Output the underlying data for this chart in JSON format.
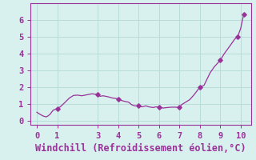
{
  "x": [
    0,
    0.15,
    0.3,
    0.45,
    0.55,
    0.65,
    0.8,
    1.0,
    1.15,
    1.35,
    1.6,
    1.8,
    2.0,
    2.2,
    2.5,
    2.7,
    3.0,
    3.1,
    3.25,
    3.5,
    3.7,
    4.0,
    4.15,
    4.3,
    4.5,
    4.65,
    4.8,
    5.0,
    5.15,
    5.35,
    5.5,
    5.7,
    5.85,
    6.0,
    6.2,
    6.4,
    6.6,
    6.8,
    7.0,
    7.1,
    7.3,
    7.5,
    7.7,
    8.0,
    8.2,
    8.5,
    8.7,
    9.0,
    9.2,
    9.5,
    9.7,
    9.85,
    10.0,
    10.15
  ],
  "y": [
    0.5,
    0.38,
    0.28,
    0.22,
    0.28,
    0.38,
    0.62,
    0.72,
    0.82,
    1.05,
    1.35,
    1.5,
    1.52,
    1.48,
    1.55,
    1.6,
    1.55,
    1.45,
    1.48,
    1.42,
    1.35,
    1.3,
    1.2,
    1.15,
    1.1,
    0.95,
    0.88,
    0.88,
    0.82,
    0.88,
    0.82,
    0.78,
    0.82,
    0.8,
    0.75,
    0.78,
    0.8,
    0.8,
    0.78,
    0.95,
    1.1,
    1.25,
    1.52,
    2.0,
    2.1,
    2.85,
    3.2,
    3.6,
    4.0,
    4.5,
    4.85,
    5.0,
    5.5,
    6.35
  ],
  "marker_x": [
    1.0,
    3.0,
    4.0,
    5.0,
    6.0,
    7.0,
    8.0,
    9.0,
    9.85,
    10.15
  ],
  "marker_y": [
    0.72,
    1.55,
    1.3,
    0.88,
    0.8,
    0.78,
    2.0,
    3.6,
    5.0,
    6.35
  ],
  "xlabel": "Windchill (Refroidissement éolien,°C)",
  "xlim": [
    -0.3,
    10.5
  ],
  "ylim": [
    -0.25,
    7.0
  ],
  "xticks": [
    0,
    1,
    3,
    4,
    5,
    6,
    7,
    8,
    9,
    10
  ],
  "yticks": [
    0,
    1,
    2,
    3,
    4,
    5,
    6
  ],
  "line_color": "#993399",
  "marker_color": "#993399",
  "bg_color": "#d8f0ee",
  "grid_color": "#b8dcd8",
  "spine_color": "#993399",
  "tick_color": "#993399",
  "label_color": "#993399",
  "font_size": 7.5,
  "xlabel_fontsize": 8.5
}
